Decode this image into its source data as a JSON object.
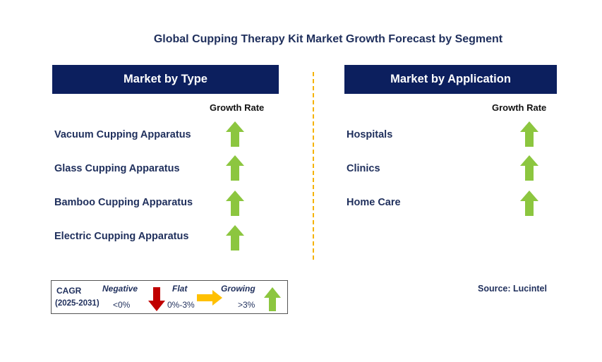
{
  "title": "Global Cupping Therapy Kit Market Growth Forecast by Segment",
  "left_panel": {
    "header": "Market by Type",
    "growth_label": "Growth Rate",
    "rows": [
      {
        "label": "Vacuum Cupping Apparatus",
        "trend": "growing"
      },
      {
        "label": "Glass Cupping Apparatus",
        "trend": "growing"
      },
      {
        "label": "Bamboo Cupping Apparatus",
        "trend": "growing"
      },
      {
        "label": "Electric Cupping Apparatus",
        "trend": "growing"
      }
    ]
  },
  "right_panel": {
    "header": "Market by Application",
    "growth_label": "Growth Rate",
    "rows": [
      {
        "label": "Hospitals",
        "trend": "growing"
      },
      {
        "label": "Clinics",
        "trend": "growing"
      },
      {
        "label": "Home Care",
        "trend": "growing"
      }
    ]
  },
  "legend": {
    "cagr_label": "CAGR",
    "period": "(2025-2031)",
    "negative": {
      "label": "Negative",
      "range": "<0%",
      "color": "#c00000"
    },
    "flat": {
      "label": "Flat",
      "range": "0%-3%",
      "color": "#ffc000"
    },
    "growing": {
      "label": "Growing",
      "range": ">3%",
      "color": "#8cc63f"
    }
  },
  "source": "Source: Lucintel",
  "colors": {
    "header_bg": "#0c1f5e",
    "arrow_green": "#8cc63f",
    "divider": "#f5b300"
  }
}
